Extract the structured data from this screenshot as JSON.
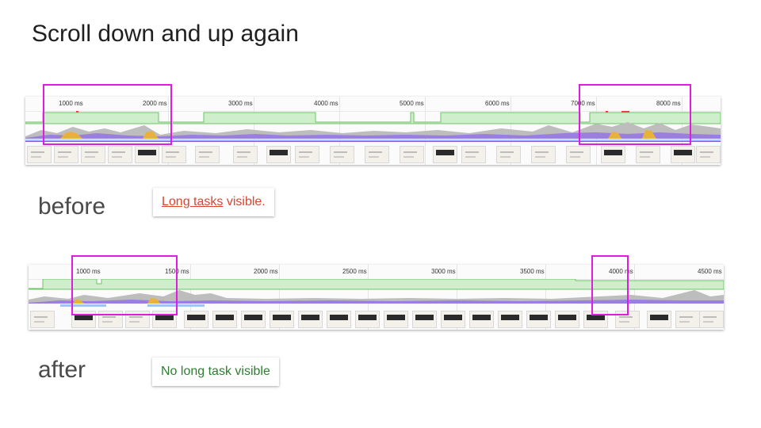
{
  "title": "Scroll down and up again",
  "before": {
    "label": "before",
    "ticks": [
      "1000 ms",
      "2000 ms",
      "3000 ms",
      "4000 ms",
      "5000 ms",
      "6000 ms",
      "7000 ms",
      "8000 ms"
    ],
    "note_link": "Long tasks",
    "note_rest": " visible."
  },
  "after": {
    "label": "after",
    "ticks": [
      "1000 ms",
      "1500 ms",
      "2000 ms",
      "2500 ms",
      "3000 ms",
      "3500 ms",
      "4000 ms",
      "4500 ms"
    ],
    "note": "No long task visible"
  },
  "colors": {
    "highlight": "#e01ce0",
    "long_task_text": "#d9452f",
    "ok_text": "#2e7d32",
    "fps_fill": "#cfeecb",
    "fps_line": "#6cc46a",
    "scripting": "#e8b23a",
    "rendering": "#9b7fe0",
    "idle": "#bdbdbd",
    "long_task_marker": "#e53935"
  }
}
